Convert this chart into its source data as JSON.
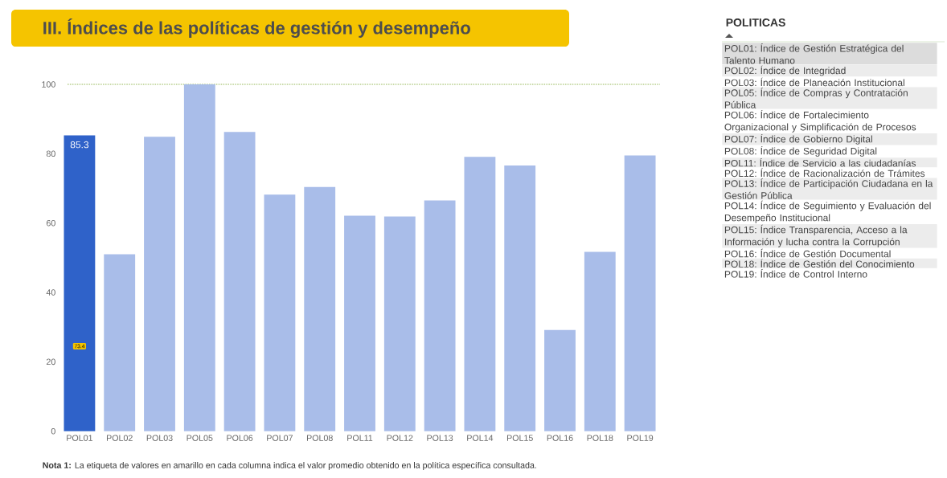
{
  "chart_data": [
    {
      "type": "bar",
      "title": "III. Índices de las políticas de gestión y desempeño",
      "categories": [
        "POL01",
        "POL02",
        "POL03",
        "POL05",
        "POL06",
        "POL07",
        "POL08",
        "POL11",
        "POL12",
        "POL13",
        "POL14",
        "POL15",
        "POL16",
        "POL18",
        "POL19"
      ],
      "values": [
        85.3,
        51.0,
        84.9,
        100,
        86.3,
        68.2,
        70.4,
        62.1,
        61.9,
        66.5,
        79.1,
        76.6,
        29.2,
        51.7,
        79.5
      ],
      "colors": [
        "#2f62c9",
        "#a9bde9",
        "#a9bde9",
        "#a9bde9",
        "#a9bde9",
        "#a9bde9",
        "#a9bde9",
        "#a9bde9",
        "#a9bde9",
        "#a9bde9",
        "#a9bde9",
        "#a9bde9",
        "#a9bde9",
        "#a9bde9",
        "#a9bde9"
      ],
      "value_labels": [
        "85.3",
        null,
        null,
        null,
        null,
        null,
        null,
        null,
        null,
        null,
        null,
        null,
        null,
        null,
        null
      ],
      "ylim": [
        0,
        100
      ],
      "yticks": [
        0,
        20,
        40,
        60,
        80,
        100
      ],
      "ref_lines": [
        {
          "axis": "y",
          "value": 100,
          "color": "#b9d08f",
          "line_style": "dotted"
        }
      ],
      "annotations": [
        "73.4",
        "**Nota 1:** La etiqueta de valores en amarillo en cada columna indica el valor promedio obtenido en la política específica consultada."
      ]
    },
    {
      "type": "other",
      "title": "POLITICAS",
      "annotations": [
        "POL01: Índice de Gestión Estratégica del Talento Humano",
        "POL02: Índice de Integridad",
        "POL03: Índice de Planeación Institucional",
        "POL05: Índice de Compras y Contratación Pública",
        "POL06: Índice de Fortalecimiento Organizacional y Simplificación de Procesos",
        "POL07: Índice de Gobierno Digital",
        "POL08: Índice de Seguridad Digital",
        "POL11: Índice de Servicio a las ciudadanías",
        "POL12: Índice de Racionalización de Trámites",
        "POL13: Índice de Participación Ciudadana en la Gestión Pública",
        "POL14: Índice de Seguimiento y Evaluación del Desempeño Institucional",
        "POL15: Índice Transparencia, Acceso a la Información y lucha contra la Corrupción",
        "POL16: Índice de Gestión Documental",
        "POL18: Índice de Gestión del Conocimiento",
        "POL19: Índice de Control Interno"
      ]
    }
  ]
}
